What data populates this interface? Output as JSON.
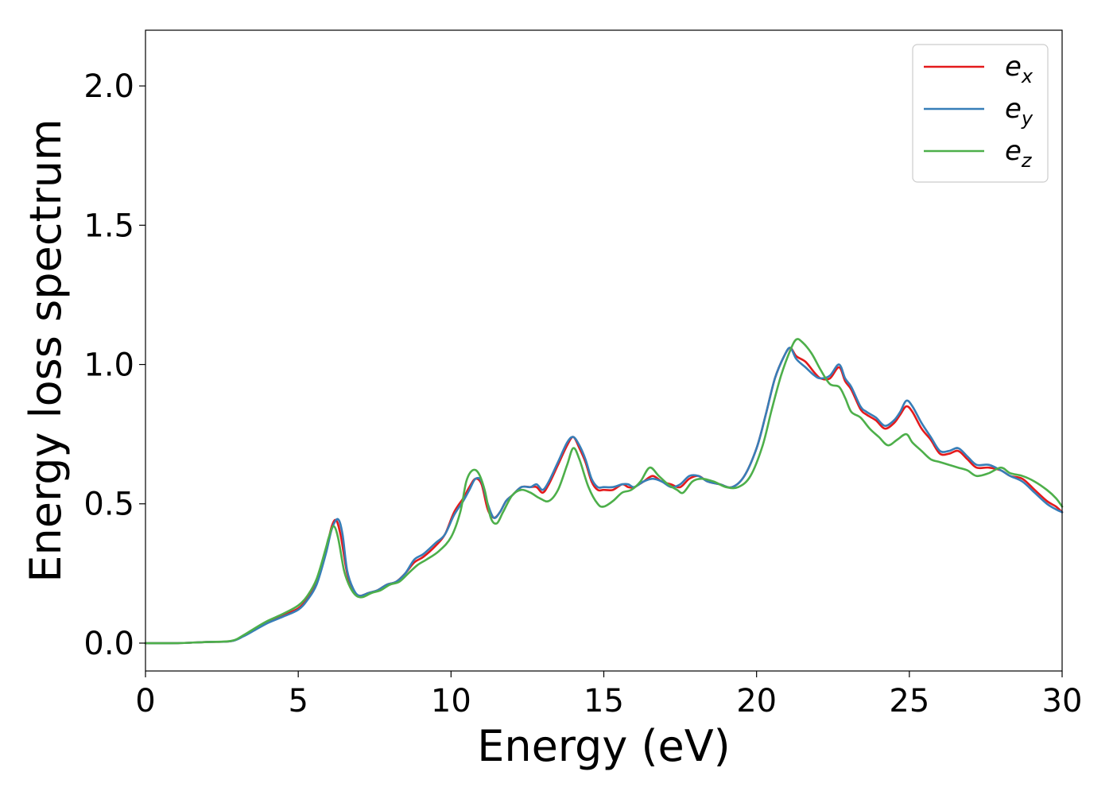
{
  "chart_data": {
    "type": "line",
    "xlabel": "Energy (eV)",
    "ylabel": "Energy loss spectrum",
    "xlim": [
      0,
      30
    ],
    "ylim": [
      -0.1,
      2.2
    ],
    "xticks": [
      "0",
      "5",
      "10",
      "15",
      "20",
      "25",
      "30"
    ],
    "yticks": [
      "0.0",
      "0.5",
      "1.0",
      "1.5",
      "2.0"
    ],
    "grid": false,
    "legend_position": "top-right",
    "series": [
      {
        "name": "e",
        "subscript": "x",
        "color": "#e41a1c",
        "x": [
          0,
          1,
          2,
          2.8,
          3.2,
          3.6,
          4.0,
          4.5,
          5.0,
          5.3,
          5.6,
          5.9,
          6.1,
          6.25,
          6.4,
          6.6,
          6.8,
          7.0,
          7.3,
          7.6,
          7.9,
          8.2,
          8.5,
          8.8,
          9.1,
          9.5,
          9.8,
          10.1,
          10.4,
          10.6,
          10.8,
          11.0,
          11.2,
          11.4,
          11.6,
          11.8,
          12.0,
          12.3,
          12.6,
          12.8,
          13.0,
          13.2,
          13.5,
          13.8,
          14.0,
          14.2,
          14.4,
          14.6,
          14.8,
          15.0,
          15.3,
          15.6,
          15.8,
          16.0,
          16.3,
          16.6,
          16.9,
          17.2,
          17.5,
          17.8,
          18.1,
          18.4,
          18.8,
          19.2,
          19.6,
          20.0,
          20.3,
          20.6,
          20.9,
          21.1,
          21.3,
          21.6,
          21.9,
          22.1,
          22.4,
          22.7,
          22.9,
          23.1,
          23.4,
          23.6,
          23.9,
          24.2,
          24.5,
          24.7,
          24.9,
          25.1,
          25.4,
          25.7,
          26.0,
          26.3,
          26.6,
          26.9,
          27.2,
          27.6,
          28.0,
          28.3,
          28.7,
          29.1,
          29.5,
          29.8,
          30.0
        ],
        "y": [
          0.0,
          0.0,
          0.004,
          0.007,
          0.025,
          0.05,
          0.075,
          0.1,
          0.125,
          0.16,
          0.22,
          0.33,
          0.42,
          0.44,
          0.38,
          0.25,
          0.19,
          0.17,
          0.18,
          0.19,
          0.21,
          0.22,
          0.25,
          0.29,
          0.31,
          0.35,
          0.39,
          0.47,
          0.52,
          0.56,
          0.59,
          0.57,
          0.48,
          0.45,
          0.47,
          0.51,
          0.53,
          0.56,
          0.56,
          0.56,
          0.54,
          0.57,
          0.64,
          0.71,
          0.74,
          0.7,
          0.65,
          0.58,
          0.55,
          0.55,
          0.55,
          0.57,
          0.56,
          0.56,
          0.58,
          0.6,
          0.58,
          0.57,
          0.56,
          0.59,
          0.6,
          0.58,
          0.57,
          0.56,
          0.6,
          0.7,
          0.82,
          0.95,
          1.03,
          1.06,
          1.03,
          1.01,
          0.97,
          0.95,
          0.95,
          0.99,
          0.94,
          0.91,
          0.84,
          0.82,
          0.8,
          0.77,
          0.79,
          0.82,
          0.85,
          0.83,
          0.77,
          0.73,
          0.68,
          0.68,
          0.69,
          0.66,
          0.63,
          0.63,
          0.62,
          0.6,
          0.59,
          0.55,
          0.51,
          0.49,
          0.47
        ]
      },
      {
        "name": "e",
        "subscript": "y",
        "color": "#377eb8",
        "x": [
          0,
          1,
          2,
          2.8,
          3.2,
          3.6,
          4.0,
          4.5,
          5.0,
          5.3,
          5.6,
          5.9,
          6.1,
          6.3,
          6.45,
          6.6,
          6.8,
          7.0,
          7.3,
          7.6,
          7.9,
          8.2,
          8.5,
          8.8,
          9.1,
          9.5,
          9.8,
          10.1,
          10.4,
          10.6,
          10.8,
          11.0,
          11.2,
          11.4,
          11.6,
          11.8,
          12.0,
          12.3,
          12.6,
          12.8,
          13.0,
          13.2,
          13.5,
          13.8,
          14.0,
          14.2,
          14.4,
          14.6,
          14.8,
          15.0,
          15.3,
          15.6,
          15.8,
          16.0,
          16.3,
          16.6,
          16.9,
          17.2,
          17.5,
          17.8,
          18.1,
          18.4,
          18.8,
          19.2,
          19.6,
          20.0,
          20.3,
          20.6,
          20.9,
          21.1,
          21.3,
          21.6,
          21.9,
          22.1,
          22.4,
          22.7,
          22.9,
          23.1,
          23.4,
          23.6,
          23.9,
          24.2,
          24.5,
          24.7,
          24.9,
          25.1,
          25.4,
          25.7,
          26.0,
          26.3,
          26.6,
          26.9,
          27.2,
          27.6,
          28.0,
          28.3,
          28.7,
          29.1,
          29.5,
          29.8,
          30.0
        ],
        "y": [
          0.0,
          0.0,
          0.004,
          0.007,
          0.024,
          0.048,
          0.072,
          0.095,
          0.12,
          0.155,
          0.21,
          0.32,
          0.41,
          0.445,
          0.39,
          0.26,
          0.195,
          0.17,
          0.18,
          0.19,
          0.21,
          0.22,
          0.25,
          0.3,
          0.32,
          0.36,
          0.39,
          0.46,
          0.51,
          0.55,
          0.59,
          0.58,
          0.5,
          0.45,
          0.47,
          0.51,
          0.53,
          0.56,
          0.56,
          0.57,
          0.55,
          0.58,
          0.65,
          0.72,
          0.74,
          0.71,
          0.66,
          0.59,
          0.56,
          0.56,
          0.56,
          0.57,
          0.57,
          0.56,
          0.58,
          0.59,
          0.58,
          0.56,
          0.57,
          0.6,
          0.6,
          0.58,
          0.57,
          0.56,
          0.6,
          0.7,
          0.82,
          0.95,
          1.03,
          1.06,
          1.02,
          0.99,
          0.96,
          0.95,
          0.96,
          1.0,
          0.95,
          0.92,
          0.85,
          0.83,
          0.81,
          0.78,
          0.8,
          0.83,
          0.87,
          0.85,
          0.79,
          0.74,
          0.69,
          0.69,
          0.7,
          0.67,
          0.64,
          0.64,
          0.62,
          0.6,
          0.58,
          0.54,
          0.5,
          0.48,
          0.47
        ]
      },
      {
        "name": "e",
        "subscript": "z",
        "color": "#4daf4a",
        "x": [
          0,
          1,
          2,
          2.8,
          3.2,
          3.6,
          4.0,
          4.5,
          5.0,
          5.3,
          5.6,
          5.9,
          6.0,
          6.15,
          6.3,
          6.5,
          6.7,
          6.9,
          7.1,
          7.4,
          7.7,
          8.0,
          8.3,
          8.6,
          8.9,
          9.2,
          9.6,
          10.0,
          10.3,
          10.5,
          10.7,
          10.9,
          11.1,
          11.3,
          11.5,
          11.7,
          12.0,
          12.3,
          12.6,
          12.9,
          13.2,
          13.5,
          13.8,
          14.0,
          14.2,
          14.5,
          14.8,
          15.0,
          15.3,
          15.6,
          15.9,
          16.2,
          16.5,
          16.8,
          17.1,
          17.4,
          17.6,
          17.9,
          18.2,
          18.6,
          19.0,
          19.4,
          19.8,
          20.2,
          20.5,
          20.8,
          21.1,
          21.3,
          21.5,
          21.8,
          22.1,
          22.4,
          22.7,
          22.9,
          23.1,
          23.4,
          23.7,
          24.0,
          24.3,
          24.6,
          24.9,
          25.1,
          25.4,
          25.7,
          26.0,
          26.3,
          26.6,
          26.9,
          27.2,
          27.6,
          28.0,
          28.3,
          28.7,
          29.1,
          29.5,
          29.8,
          30.0
        ],
        "y": [
          0.0,
          0.0,
          0.004,
          0.008,
          0.028,
          0.055,
          0.08,
          0.105,
          0.135,
          0.17,
          0.23,
          0.34,
          0.38,
          0.42,
          0.38,
          0.26,
          0.2,
          0.17,
          0.165,
          0.18,
          0.19,
          0.21,
          0.22,
          0.25,
          0.28,
          0.3,
          0.33,
          0.38,
          0.47,
          0.58,
          0.62,
          0.61,
          0.55,
          0.45,
          0.43,
          0.47,
          0.53,
          0.55,
          0.54,
          0.52,
          0.51,
          0.55,
          0.64,
          0.7,
          0.66,
          0.56,
          0.5,
          0.49,
          0.51,
          0.54,
          0.55,
          0.58,
          0.63,
          0.6,
          0.57,
          0.55,
          0.54,
          0.58,
          0.59,
          0.58,
          0.56,
          0.56,
          0.6,
          0.71,
          0.84,
          0.96,
          1.05,
          1.09,
          1.08,
          1.04,
          0.98,
          0.93,
          0.92,
          0.88,
          0.83,
          0.81,
          0.77,
          0.74,
          0.71,
          0.73,
          0.75,
          0.72,
          0.69,
          0.66,
          0.65,
          0.64,
          0.63,
          0.62,
          0.6,
          0.61,
          0.63,
          0.61,
          0.6,
          0.58,
          0.55,
          0.52,
          0.49
        ]
      }
    ]
  }
}
